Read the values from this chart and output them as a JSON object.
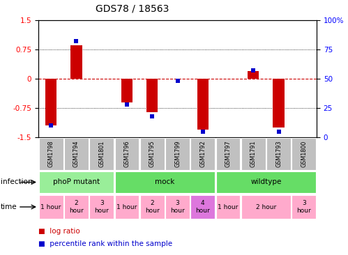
{
  "title": "GDS78 / 18563",
  "samples": [
    "GSM1798",
    "GSM1794",
    "GSM1801",
    "GSM1796",
    "GSM1795",
    "GSM1799",
    "GSM1792",
    "GSM1797",
    "GSM1791",
    "GSM1793",
    "GSM1800"
  ],
  "log_ratio": [
    -1.2,
    0.85,
    0.0,
    -0.6,
    -0.85,
    0.0,
    -1.3,
    0.0,
    0.2,
    -1.25,
    0.0
  ],
  "percentile": [
    10,
    82,
    0,
    28,
    18,
    48,
    5,
    0,
    57,
    5,
    0
  ],
  "ylim": [
    -1.5,
    1.5
  ],
  "y2lim": [
    0,
    100
  ],
  "yticks": [
    -1.5,
    -0.75,
    0,
    0.75,
    1.5
  ],
  "y2ticks": [
    0,
    25,
    50,
    75,
    100
  ],
  "bar_color": "#CC0000",
  "dot_color": "#0000CC",
  "background_color": "#FFFFFF",
  "zero_line_color": "#CC0000",
  "sample_bg": "#C0C0C0",
  "infection_ranges": [
    [
      0,
      2,
      "phoP mutant",
      "#99EE99"
    ],
    [
      3,
      6,
      "mock",
      "#66DD66"
    ],
    [
      7,
      10,
      "wildtype",
      "#66DD66"
    ]
  ],
  "time_ranges": [
    [
      0,
      0,
      "1 hour",
      "#FFAACC"
    ],
    [
      1,
      1,
      "2\nhour",
      "#FFAACC"
    ],
    [
      2,
      2,
      "3\nhour",
      "#FFAACC"
    ],
    [
      3,
      3,
      "1 hour",
      "#FFAACC"
    ],
    [
      4,
      4,
      "2\nhour",
      "#FFAACC"
    ],
    [
      5,
      5,
      "3\nhour",
      "#FFAACC"
    ],
    [
      6,
      6,
      "4\nhour",
      "#DD77DD"
    ],
    [
      7,
      7,
      "1 hour",
      "#FFAACC"
    ],
    [
      8,
      9,
      "2 hour",
      "#FFAACC"
    ],
    [
      10,
      10,
      "3\nhour",
      "#FFAACC"
    ]
  ]
}
